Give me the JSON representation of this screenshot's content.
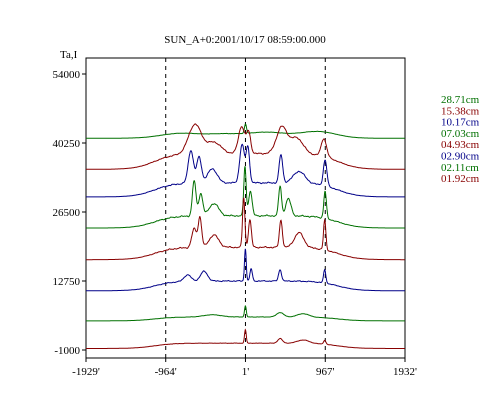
{
  "chart_data": {
    "type": "line",
    "title": "SUN_A+0:2001/10/17 08:59:00.000",
    "ylabel": "Ta,I",
    "xlabel": "",
    "xlim": [
      -1929,
      1932
    ],
    "ylim": [
      -1000,
      54000
    ],
    "x_ticks": [
      {
        "value": -1929,
        "label": "-1929'"
      },
      {
        "value": -964,
        "label": "-964'"
      },
      {
        "value": 1,
        "label": "1'"
      },
      {
        "value": 967,
        "label": "967'"
      },
      {
        "value": 1932,
        "label": "1932'"
      }
    ],
    "y_ticks": [
      {
        "value": -1000,
        "label": "-1000"
      },
      {
        "value": 12750,
        "label": "12750"
      },
      {
        "value": 26500,
        "label": "26500"
      },
      {
        "value": 40250,
        "label": "40250"
      },
      {
        "value": 54000,
        "label": "54000"
      }
    ],
    "vlines": [
      -964,
      1,
      967
    ],
    "grid": false,
    "legend_position": "right",
    "series": [
      {
        "name": "28.71cm",
        "color": "#007000",
        "baseline": 41200,
        "profile": "wide",
        "peak": 2800
      },
      {
        "name": "15.38cm",
        "color": "#880000",
        "baseline": 35000,
        "profile": "a",
        "peak": 9000
      },
      {
        "name": "10.17cm",
        "color": "#000088",
        "baseline": 29500,
        "profile": "b",
        "peak": 10500
      },
      {
        "name": "07.03cm",
        "color": "#007000",
        "baseline": 23300,
        "profile": "c",
        "peak": 12300
      },
      {
        "name": "04.93cm",
        "color": "#880000",
        "baseline": 17000,
        "profile": "d",
        "peak": 12300
      },
      {
        "name": "02.90cm",
        "color": "#000088",
        "baseline": 10800,
        "profile": "e",
        "peak": 8400
      },
      {
        "name": "02.11cm",
        "color": "#007000",
        "baseline": 4800,
        "profile": "f",
        "peak": 3000
      },
      {
        "name": "01.92cm",
        "color": "#880000",
        "baseline": -700,
        "profile": "g",
        "peak": 3700
      }
    ]
  }
}
